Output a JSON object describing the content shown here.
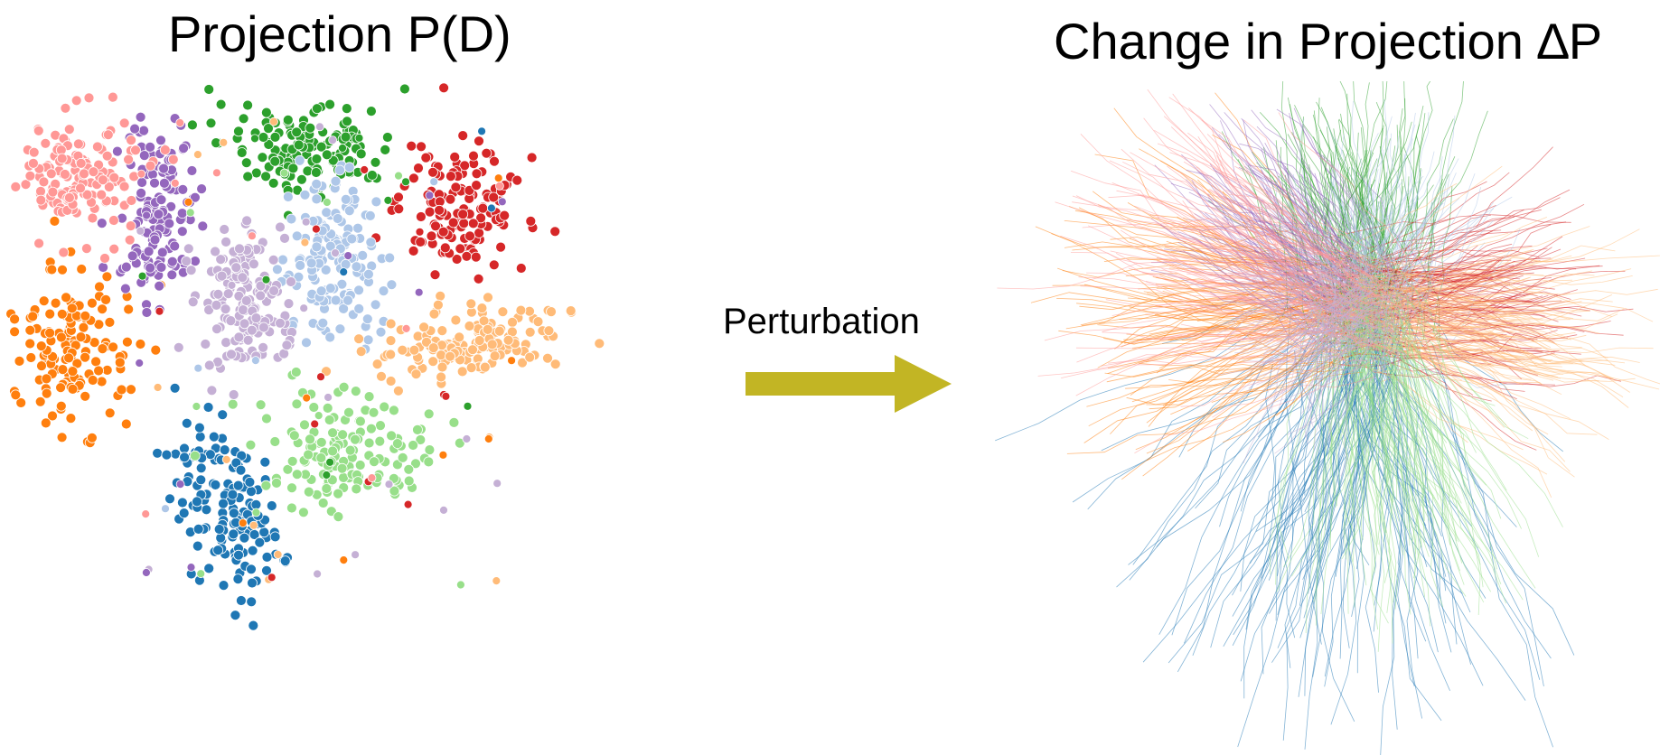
{
  "left_panel": {
    "title": "Projection P(D)"
  },
  "right_panel": {
    "title": "Change in Projection ∆P"
  },
  "arrow": {
    "label": "Perturbation",
    "color": "#c2b524"
  },
  "cluster_colors": [
    "#1f77b4",
    "#ff7f0e",
    "#2ca02c",
    "#d62728",
    "#9467bd",
    "#aec7e8",
    "#ffbb78",
    "#98df8a",
    "#ff9896",
    "#c5b0d5"
  ],
  "points_per_cluster": 150,
  "lines_per_cluster": 120
}
